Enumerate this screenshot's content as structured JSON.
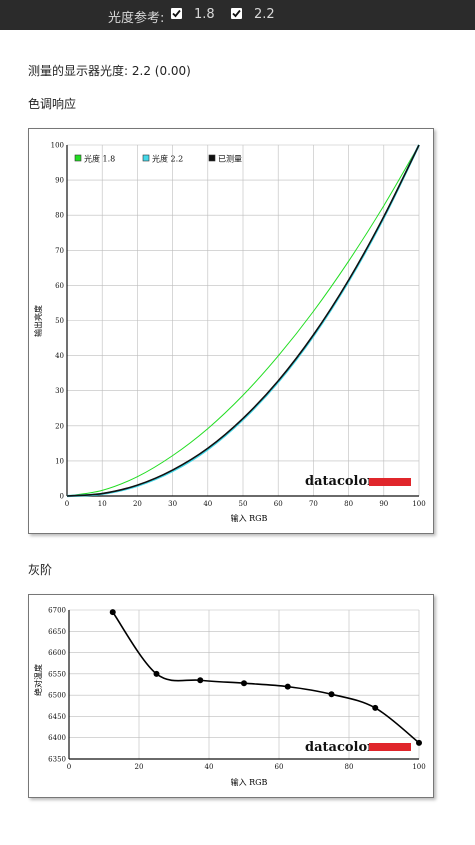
{
  "header": {
    "gamma_ref_label": "光度参考:",
    "options": [
      {
        "label": "1.8",
        "checked": true
      },
      {
        "label": "2.2",
        "checked": true
      }
    ]
  },
  "measured": {
    "label": "测量的显示器光度:",
    "value": "2.2 (0.00)"
  },
  "tone_section": {
    "title": "色调响应"
  },
  "gray_section": {
    "title": "灰阶"
  },
  "brand": "datacolor",
  "chart_data": [
    {
      "type": "line",
      "title": "",
      "xlabel": "输入 RGB",
      "ylabel": "输出亮度",
      "xlim": [
        0,
        100
      ],
      "ylim": [
        0,
        100
      ],
      "xticks": [
        0,
        10,
        20,
        30,
        40,
        50,
        60,
        70,
        80,
        90,
        100
      ],
      "yticks": [
        0,
        10,
        20,
        30,
        40,
        50,
        60,
        70,
        80,
        90,
        100
      ],
      "grid": true,
      "legend": "top-left",
      "series": [
        {
          "name": "光度 1.8",
          "color": "#22dd22",
          "x": [
            0,
            10,
            20,
            30,
            40,
            50,
            60,
            70,
            80,
            90,
            100
          ],
          "y": [
            0,
            1.6,
            5.5,
            11.5,
            19.2,
            28.7,
            39.9,
            52.6,
            66.9,
            82.7,
            100
          ]
        },
        {
          "name": "光度 2.2",
          "color": "#44d8e8",
          "x": [
            0,
            10,
            20,
            30,
            40,
            50,
            60,
            70,
            80,
            90,
            100
          ],
          "y": [
            0,
            0.6,
            2.9,
            7.1,
            13.3,
            21.8,
            32.5,
            45.6,
            61.2,
            79.3,
            100
          ]
        },
        {
          "name": "已测量",
          "color": "#111111",
          "x": [
            0,
            10,
            20,
            30,
            40,
            50,
            60,
            70,
            80,
            90,
            100
          ],
          "y": [
            0,
            0.7,
            3.1,
            7.4,
            13.6,
            22.1,
            32.8,
            45.9,
            61.5,
            79.6,
            100
          ]
        }
      ]
    },
    {
      "type": "line",
      "title": "",
      "xlabel": "输入 RGB",
      "ylabel": "绝对温度",
      "xlim": [
        0,
        100
      ],
      "ylim": [
        6350,
        6700
      ],
      "xticks": [
        0,
        20,
        40,
        60,
        80,
        100
      ],
      "yticks": [
        6350,
        6400,
        6450,
        6500,
        6550,
        6600,
        6650,
        6700
      ],
      "grid": true,
      "series": [
        {
          "color": "#000000",
          "x": [
            12.5,
            25,
            37.5,
            50,
            62.5,
            75,
            87.5,
            100
          ],
          "y": [
            6695,
            6550,
            6535,
            6528,
            6520,
            6502,
            6470,
            6388
          ]
        }
      ]
    }
  ]
}
